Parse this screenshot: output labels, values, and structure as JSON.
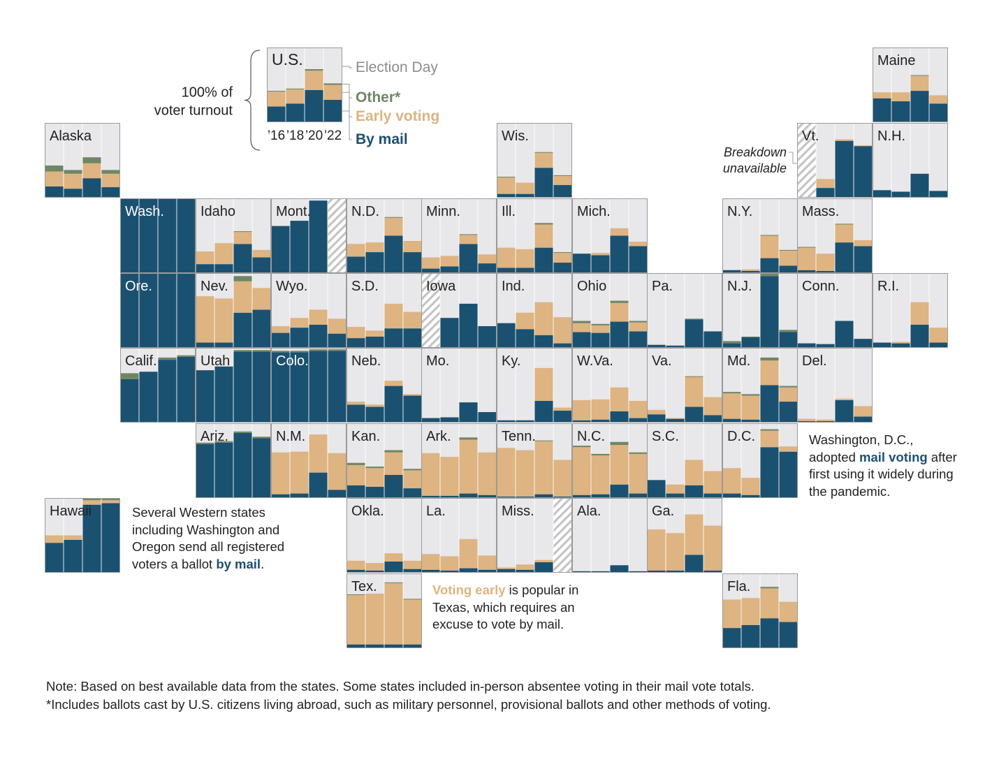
{
  "colors": {
    "mail": "#1b5170",
    "early": "#ddb482",
    "other": "#6f8665",
    "election_day": "#e8e7ea",
    "unavailable": "#c4c4c4",
    "border": "#9a9a9a",
    "label": "#222222",
    "legend_gray": "#8c8c8c"
  },
  "legend": {
    "state": "U.S.",
    "bracket_label_1": "100% of",
    "bracket_label_2": "voter turnout",
    "election_day": "Election Day",
    "other": "Other*",
    "early": "Early voting",
    "mail": "By mail",
    "years": [
      "’16",
      "’18",
      "’20",
      "’22"
    ]
  },
  "breakdown_unavailable": [
    "Breakdown",
    "unavailable"
  ],
  "annotations": {
    "western": {
      "pre": "Several Western states including Washington and Oregon send all registered voters a ballot ",
      "hl": "by mail",
      "post": "."
    },
    "texas": {
      "hl": "Voting early",
      "post": " is popular in Texas, which requires an excuse to vote by mail."
    },
    "dc": {
      "pre": "Washington, D.C., adopted ",
      "hl": "mail voting",
      "post": " after first using it widely during the pandemic."
    }
  },
  "notes": {
    "line1": "Note: Based on best available data from the states. Some states included in-person absentee voting in their mail vote totals.",
    "line2": "*Includes ballots cast by U.S. citizens living abroad, such as military personnel, provisional ballots and other methods of voting."
  },
  "chart_data": {
    "type": "bar",
    "subtype": "small-multiple stacked bars (share of voter turnout, %)",
    "categories": [
      "2016",
      "2018",
      "2020",
      "2022"
    ],
    "stack_order": [
      "mail",
      "early",
      "other",
      "election_day"
    ],
    "series_names": {
      "mail": "By mail",
      "early": "Early voting",
      "other": "Other*",
      "election_day": "Election Day"
    },
    "ylim": [
      0,
      100
    ],
    "states": [
      {
        "name": "U.S.",
        "mail": [
          21,
          25,
          43,
          30
        ],
        "early": [
          20,
          19,
          26,
          20
        ],
        "other": [
          1,
          1,
          2,
          2
        ]
      },
      {
        "name": "Maine",
        "mail": [
          32,
          28,
          42,
          25
        ],
        "early": [
          8,
          12,
          20,
          11
        ],
        "other": [
          0,
          0,
          1,
          0
        ]
      },
      {
        "name": "Alaska",
        "mail": [
          15,
          12,
          26,
          14
        ],
        "early": [
          20,
          20,
          20,
          18
        ],
        "other": [
          8,
          5,
          8,
          5
        ]
      },
      {
        "name": "Wis.",
        "mail": [
          5,
          5,
          40,
          17
        ],
        "early": [
          22,
          15,
          20,
          12
        ],
        "other": [
          1,
          0,
          1,
          1
        ]
      },
      {
        "name": "Vt.",
        "mail": [
          null,
          13,
          76,
          69
        ],
        "early": [
          null,
          12,
          2,
          1
        ],
        "other": [
          null,
          0,
          0,
          0
        ]
      },
      {
        "name": "N.H.",
        "mail": [
          10,
          8,
          32,
          9
        ],
        "early": [
          0,
          0,
          0,
          0
        ],
        "other": [
          0,
          0,
          0,
          0
        ]
      },
      {
        "name": "Wash.",
        "mail": [
          100,
          100,
          100,
          100
        ],
        "early": [
          0,
          0,
          0,
          0
        ],
        "other": [
          0,
          0,
          0,
          0
        ]
      },
      {
        "name": "Idaho",
        "mail": [
          12,
          12,
          39,
          21
        ],
        "early": [
          17,
          28,
          16,
          10
        ],
        "other": [
          0,
          0,
          1,
          0
        ]
      },
      {
        "name": "Mont.",
        "mail": [
          63,
          70,
          97,
          null
        ],
        "early": [
          0,
          0,
          0,
          null
        ],
        "other": [
          0,
          0,
          0,
          null
        ]
      },
      {
        "name": "N.D.",
        "mail": [
          22,
          28,
          50,
          28
        ],
        "early": [
          17,
          13,
          24,
          15
        ],
        "other": [
          0,
          0,
          1,
          0
        ]
      },
      {
        "name": "Minn.",
        "mail": [
          6,
          9,
          39,
          13
        ],
        "early": [
          15,
          14,
          12,
          12
        ],
        "other": [
          0,
          0,
          1,
          0
        ]
      },
      {
        "name": "Ill.",
        "mail": [
          7,
          7,
          34,
          14
        ],
        "early": [
          27,
          25,
          31,
          13
        ],
        "other": [
          0,
          0,
          2,
          1
        ]
      },
      {
        "name": "Mich.",
        "mail": [
          26,
          24,
          50,
          36
        ],
        "early": [
          0,
          3,
          10,
          6
        ],
        "other": [
          0,
          0,
          0,
          0
        ]
      },
      {
        "name": "N.Y.",
        "mail": [
          4,
          3,
          20,
          10
        ],
        "early": [
          0,
          2,
          30,
          20
        ],
        "other": [
          0,
          0,
          1,
          1
        ]
      },
      {
        "name": "Mass.",
        "mail": [
          4,
          3,
          41,
          36
        ],
        "early": [
          30,
          23,
          24,
          8
        ],
        "other": [
          1,
          0,
          1,
          0
        ]
      },
      {
        "name": "Ore.",
        "mail": [
          100,
          100,
          100,
          100
        ],
        "early": [
          0,
          0,
          0,
          0
        ],
        "other": [
          0,
          0,
          0,
          0
        ]
      },
      {
        "name": "Nev.",
        "mail": [
          7,
          7,
          47,
          51
        ],
        "early": [
          62,
          59,
          42,
          29
        ],
        "other": [
          0,
          0,
          7,
          0
        ]
      },
      {
        "name": "Wyo.",
        "mail": [
          20,
          27,
          31,
          19
        ],
        "early": [
          9,
          13,
          20,
          20
        ],
        "other": [
          0,
          0,
          0,
          0
        ]
      },
      {
        "name": "S.D.",
        "mail": [
          13,
          15,
          26,
          26
        ],
        "early": [
          15,
          8,
          33,
          22
        ],
        "other": [
          0,
          0,
          0,
          0
        ]
      },
      {
        "name": "Iowa",
        "mail": [
          null,
          40,
          59,
          29
        ],
        "early": [
          null,
          0,
          0,
          0
        ],
        "other": [
          null,
          0,
          0,
          0
        ]
      },
      {
        "name": "Ind.",
        "mail": [
          33,
          25,
          17,
          6
        ],
        "early": [
          0,
          22,
          44,
          35
        ],
        "other": [
          0,
          0,
          0,
          0
        ]
      },
      {
        "name": "Ohio",
        "mail": [
          21,
          20,
          35,
          22
        ],
        "early": [
          12,
          10,
          25,
          12
        ],
        "other": [
          3,
          2,
          3,
          2
        ]
      },
      {
        "name": "Pa.",
        "mail": [
          4,
          3,
          38,
          22
        ],
        "early": [
          0,
          0,
          0,
          0
        ],
        "other": [
          0,
          0,
          1,
          0
        ]
      },
      {
        "name": "N.J.",
        "mail": [
          6,
          14,
          96,
          21
        ],
        "early": [
          0,
          0,
          0,
          0
        ],
        "other": [
          3,
          1,
          5,
          3
        ]
      },
      {
        "name": "Conn.",
        "mail": [
          6,
          5,
          36,
          12
        ],
        "early": [
          0,
          0,
          0,
          0
        ],
        "other": [
          0,
          0,
          0,
          0
        ]
      },
      {
        "name": "R.I.",
        "mail": [
          7,
          6,
          31,
          7
        ],
        "early": [
          0,
          2,
          30,
          20
        ],
        "other": [
          0,
          0,
          0,
          0
        ]
      },
      {
        "name": "Calif.",
        "mail": [
          58,
          68,
          84,
          88
        ],
        "early": [
          0,
          0,
          0,
          0
        ],
        "other": [
          8,
          0,
          3,
          2
        ]
      },
      {
        "name": "Utah",
        "mail": [
          70,
          75,
          95,
          95
        ],
        "early": [
          0,
          0,
          0,
          0
        ],
        "other": [
          0,
          0,
          2,
          2
        ]
      },
      {
        "name": "Colo.",
        "mail": [
          94,
          94,
          96,
          96
        ],
        "early": [
          0,
          0,
          0,
          0
        ],
        "other": [
          2,
          2,
          2,
          2
        ]
      },
      {
        "name": "Neb.",
        "mail": [
          24,
          21,
          49,
          36
        ],
        "early": [
          4,
          3,
          7,
          2
        ],
        "other": [
          0,
          0,
          0,
          0
        ]
      },
      {
        "name": "Mo.",
        "mail": [
          6,
          7,
          27,
          14
        ],
        "early": [
          0,
          0,
          0,
          0
        ],
        "other": [
          0,
          0,
          0,
          0
        ]
      },
      {
        "name": "Ky.",
        "mail": [
          3,
          3,
          29,
          16
        ],
        "early": [
          0,
          0,
          44,
          4
        ],
        "other": [
          0,
          0,
          0,
          0
        ]
      },
      {
        "name": "W.Va.",
        "mail": [
          3,
          4,
          15,
          6
        ],
        "early": [
          27,
          27,
          32,
          23
        ],
        "other": [
          0,
          0,
          0,
          0
        ]
      },
      {
        "name": "Va.",
        "mail": [
          11,
          5,
          21,
          10
        ],
        "early": [
          6,
          1,
          40,
          24
        ],
        "other": [
          0,
          0,
          1,
          0
        ]
      },
      {
        "name": "Md.",
        "mail": [
          5,
          4,
          50,
          28
        ],
        "early": [
          34,
          32,
          33,
          19
        ],
        "other": [
          2,
          2,
          4,
          2
        ]
      },
      {
        "name": "Del.",
        "mail": [
          2,
          2,
          30,
          8
        ],
        "early": [
          3,
          2,
          2,
          14
        ],
        "other": [
          0,
          0,
          0,
          0
        ]
      },
      {
        "name": "Ariz.",
        "mail": [
          72,
          74,
          87,
          80
        ],
        "early": [
          0,
          0,
          0,
          0
        ],
        "other": [
          2,
          2,
          2,
          2
        ]
      },
      {
        "name": "N.M.",
        "mail": [
          5,
          6,
          34,
          11
        ],
        "early": [
          56,
          56,
          51,
          49
        ],
        "other": [
          0,
          0,
          0,
          0
        ]
      },
      {
        "name": "Kan.",
        "mail": [
          17,
          15,
          31,
          13
        ],
        "early": [
          27,
          25,
          30,
          24
        ],
        "other": [
          3,
          2,
          3,
          2
        ]
      },
      {
        "name": "Ark.",
        "mail": [
          3,
          3,
          6,
          4
        ],
        "early": [
          57,
          52,
          72,
          57
        ],
        "other": [
          0,
          0,
          3,
          0
        ]
      },
      {
        "name": "Tenn.",
        "mail": [
          2,
          2,
          5,
          2
        ],
        "early": [
          65,
          62,
          71,
          49
        ],
        "other": [
          0,
          0,
          1,
          0
        ]
      },
      {
        "name": "N.C.",
        "mail": [
          4,
          5,
          18,
          6
        ],
        "early": [
          64,
          52,
          53,
          53
        ],
        "other": [
          2,
          2,
          4,
          2
        ]
      },
      {
        "name": "S.C.",
        "mail": [
          24,
          6,
          17,
          6
        ],
        "early": [
          0,
          12,
          34,
          30
        ],
        "other": [
          0,
          0,
          0,
          0
        ]
      },
      {
        "name": "D.C.",
        "mail": [
          6,
          4,
          68,
          62
        ],
        "early": [
          34,
          23,
          22,
          7
        ],
        "other": [
          0,
          0,
          2,
          0
        ]
      },
      {
        "name": "Hawaii",
        "mail": [
          40,
          44,
          91,
          93
        ],
        "early": [
          10,
          6,
          6,
          4
        ],
        "other": [
          0,
          0,
          2,
          2
        ]
      },
      {
        "name": "Okla.",
        "mail": [
          4,
          3,
          15,
          5
        ],
        "early": [
          12,
          10,
          11,
          11
        ],
        "other": [
          0,
          0,
          0,
          0
        ]
      },
      {
        "name": "La.",
        "mail": [
          4,
          3,
          6,
          4
        ],
        "early": [
          21,
          19,
          39,
          19
        ],
        "other": [
          0,
          0,
          0,
          0
        ]
      },
      {
        "name": "Miss.",
        "mail": [
          5,
          4,
          14,
          null
        ],
        "early": [
          2,
          7,
          3,
          null
        ],
        "other": [
          0,
          0,
          0,
          null
        ]
      },
      {
        "name": "Ala.",
        "mail": [
          2,
          2,
          10,
          2
        ],
        "early": [
          0,
          0,
          0,
          0
        ],
        "other": [
          0,
          0,
          0,
          0
        ]
      },
      {
        "name": "Ga.",
        "mail": [
          3,
          3,
          24,
          3
        ],
        "early": [
          55,
          50,
          54,
          60
        ],
        "other": [
          0,
          0,
          0,
          0
        ]
      },
      {
        "name": "Tex.",
        "mail": [
          5,
          5,
          5,
          5
        ],
        "early": [
          66,
          68,
          82,
          60
        ],
        "other": [
          1,
          0,
          1,
          1
        ]
      },
      {
        "name": "Fla.",
        "mail": [
          27,
          31,
          40,
          35
        ],
        "early": [
          38,
          36,
          40,
          27
        ],
        "other": [
          0,
          0,
          2,
          0
        ]
      }
    ]
  }
}
